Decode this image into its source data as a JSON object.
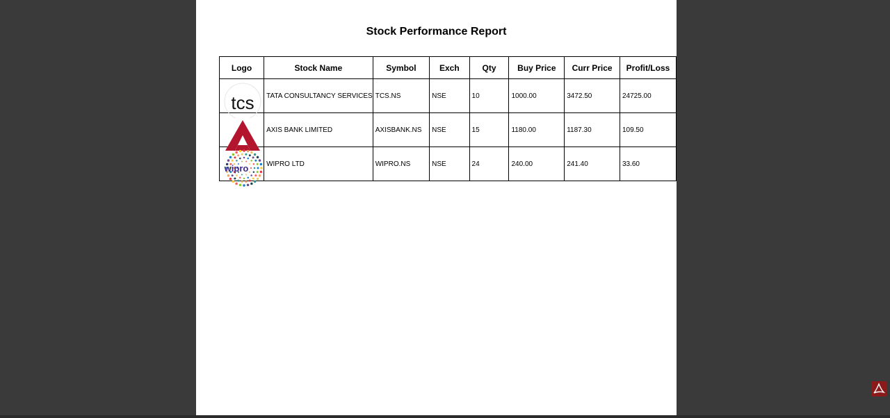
{
  "report": {
    "title": "Stock Performance Report",
    "columns": [
      "Logo",
      "Stock Name",
      "Symbol",
      "Exch",
      "Qty",
      "Buy Price",
      "Curr Price",
      "Profit/Loss"
    ],
    "rows": [
      {
        "logo": "tcs-logo",
        "logo_text": "tcs",
        "name": "TATA CONSULTANCY SERVICES",
        "symbol": "TCS.NS",
        "exch": "NSE",
        "qty": "10",
        "buy": "1000.00",
        "curr": "3472.50",
        "pl": "24725.00"
      },
      {
        "logo": "axis-bank-logo",
        "logo_text": "",
        "name": "AXIS BANK LIMITED",
        "symbol": "AXISBANK.NS",
        "exch": "NSE",
        "qty": "15",
        "buy": "1180.00",
        "curr": "1187.30",
        "pl": "109.50"
      },
      {
        "logo": "wipro-logo",
        "logo_text": "wipro",
        "name": "WIPRO LTD",
        "symbol": "WIPRO.NS",
        "exch": "NSE",
        "qty": "24",
        "buy": "240.00",
        "curr": "241.40",
        "pl": "33.60"
      }
    ]
  },
  "colors": {
    "viewer_bg": "#3a3a3a",
    "page_bg": "#ffffff",
    "axis_red": "#b3142e",
    "pdf_icon": "#8b1a1a"
  },
  "icons": {
    "pdf": "acrobat-icon"
  }
}
